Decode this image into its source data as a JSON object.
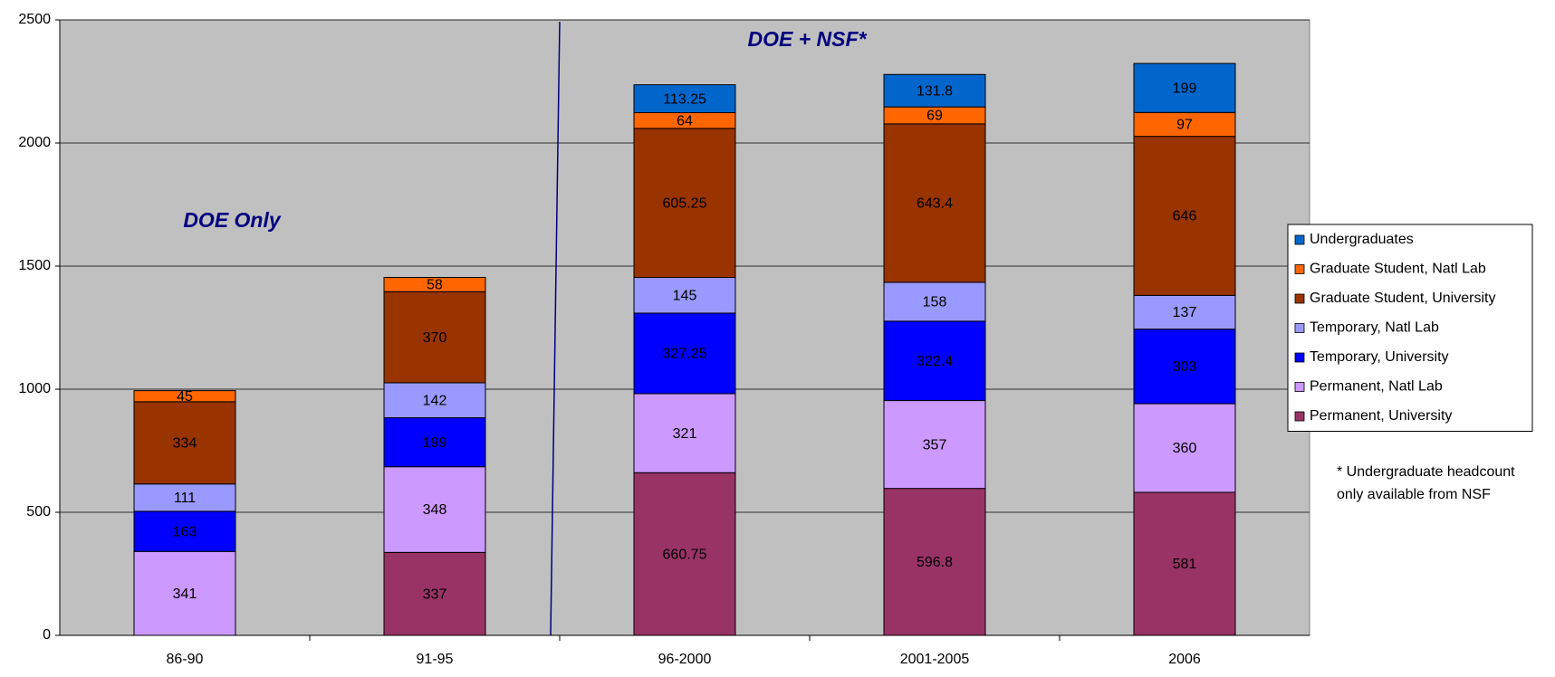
{
  "chart_data": {
    "type": "stacked_bar",
    "categories": [
      "86-90",
      "91-95",
      "96-2000",
      "2001-2005",
      "2006"
    ],
    "series": [
      {
        "name": "Permanent, University",
        "color": "#993366",
        "values": [
          null,
          337,
          660.75,
          596.8,
          581
        ]
      },
      {
        "name": "Permanent, Natl Lab",
        "color": "#cc99ff",
        "values": [
          341,
          348,
          321,
          357,
          360
        ]
      },
      {
        "name": "Temporary, University",
        "color": "#0000ff",
        "values": [
          163,
          199,
          327.25,
          322.4,
          303
        ]
      },
      {
        "name": "Temporary, Natl Lab",
        "color": "#9999ff",
        "values": [
          111,
          142,
          145,
          158,
          137
        ]
      },
      {
        "name": "Graduate Student, University",
        "color": "#993300",
        "values": [
          334,
          370,
          605.25,
          643.4,
          646
        ]
      },
      {
        "name": "Graduate Student, Natl Lab",
        "color": "#ff6600",
        "values": [
          45,
          58,
          64,
          69,
          97
        ]
      },
      {
        "name": "Undergraduates",
        "color": "#0066cc",
        "values": [
          null,
          null,
          113.25,
          131.8,
          199
        ]
      }
    ],
    "ylim": [
      0,
      2500
    ],
    "yticks": [
      0,
      500,
      1000,
      1500,
      2000,
      2500
    ],
    "grid": true,
    "legend": "right",
    "annotations": [
      "DOE Only",
      "DOE + NSF*"
    ],
    "footnote": [
      "* Undergraduate headcount",
      "only available from NSF"
    ]
  }
}
